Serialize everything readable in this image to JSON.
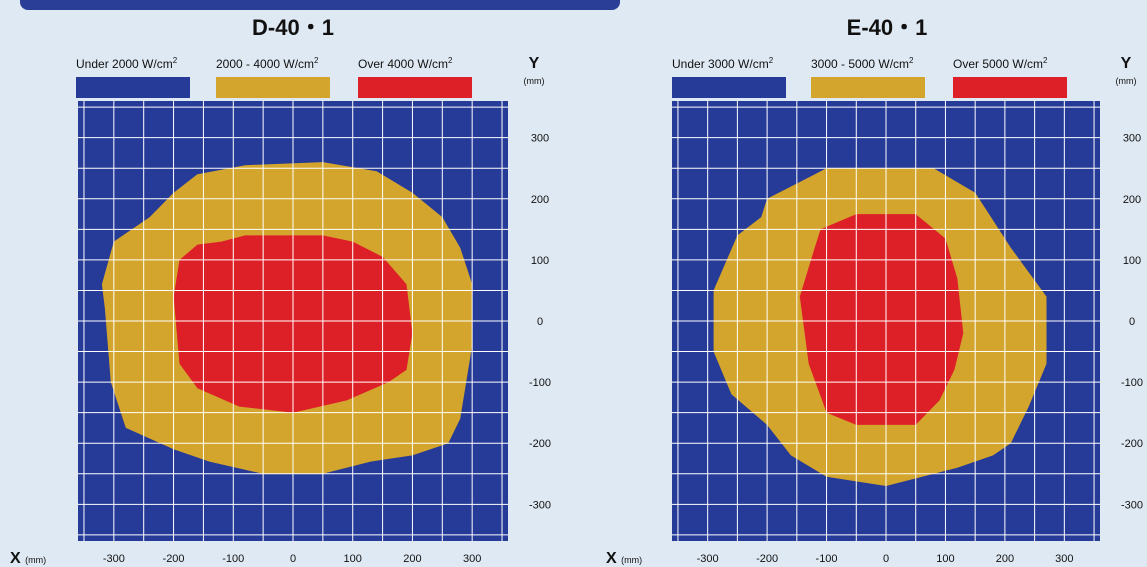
{
  "colors": {
    "background": "#dfe9f3",
    "low": "#263a97",
    "mid": "#d3a52c",
    "high": "#dd2028",
    "grid": "#ffffff",
    "text": "#111111"
  },
  "chart_data": [
    {
      "type": "heatmap",
      "title": "D-40・1",
      "legend": [
        {
          "label": "Under 2000",
          "unit": "W/cm",
          "sup": "2",
          "color_key": "low"
        },
        {
          "label": "2000 - 4000",
          "unit": "W/cm",
          "sup": "2",
          "color_key": "mid"
        },
        {
          "label": "Over 4000",
          "unit": "W/cm",
          "sup": "2",
          "color_key": "high"
        }
      ],
      "xlabel": "X",
      "xunit": "(mm)",
      "ylabel": "Y",
      "yunit": "(mm)",
      "xlim": [
        -360,
        360
      ],
      "ylim": [
        -360,
        360
      ],
      "xticks": [
        -300,
        -200,
        -100,
        0,
        100,
        200,
        300
      ],
      "yticks": [
        300,
        200,
        100,
        0,
        -100,
        -200,
        -300
      ],
      "grid_step": 50,
      "grid": true,
      "regions": [
        {
          "level": "mid",
          "polygon": [
            [
              -160,
              240
            ],
            [
              -80,
              255
            ],
            [
              50,
              260
            ],
            [
              140,
              245
            ],
            [
              200,
              210
            ],
            [
              250,
              170
            ],
            [
              280,
              120
            ],
            [
              300,
              60
            ],
            [
              300,
              -40
            ],
            [
              290,
              -100
            ],
            [
              280,
              -160
            ],
            [
              260,
              -200
            ],
            [
              200,
              -220
            ],
            [
              130,
              -230
            ],
            [
              50,
              -250
            ],
            [
              -50,
              -250
            ],
            [
              -140,
              -230
            ],
            [
              -200,
              -210
            ],
            [
              -280,
              -175
            ],
            [
              -305,
              -100
            ],
            [
              -315,
              20
            ],
            [
              -320,
              60
            ],
            [
              -300,
              130
            ],
            [
              -240,
              170
            ],
            [
              -200,
              210
            ]
          ]
        },
        {
          "level": "high",
          "polygon": [
            [
              -190,
              100
            ],
            [
              -160,
              125
            ],
            [
              -120,
              130
            ],
            [
              -80,
              140
            ],
            [
              50,
              140
            ],
            [
              100,
              130
            ],
            [
              150,
              105
            ],
            [
              190,
              60
            ],
            [
              200,
              -20
            ],
            [
              190,
              -80
            ],
            [
              160,
              -100
            ],
            [
              90,
              -130
            ],
            [
              0,
              -150
            ],
            [
              -90,
              -140
            ],
            [
              -160,
              -110
            ],
            [
              -190,
              -70
            ],
            [
              -200,
              40
            ]
          ]
        }
      ]
    },
    {
      "type": "heatmap",
      "title": "E-40・1",
      "legend": [
        {
          "label": "Under 3000",
          "unit": "W/cm",
          "sup": "2",
          "color_key": "low"
        },
        {
          "label": "3000 - 5000",
          "unit": "W/cm",
          "sup": "2",
          "color_key": "mid"
        },
        {
          "label": "Over 5000",
          "unit": "W/cm",
          "sup": "2",
          "color_key": "high"
        }
      ],
      "xlabel": "X",
      "xunit": "(mm)",
      "ylabel": "Y",
      "yunit": "(mm)",
      "xlim": [
        -360,
        360
      ],
      "ylim": [
        -360,
        360
      ],
      "xticks": [
        -300,
        -200,
        -100,
        0,
        100,
        200,
        300
      ],
      "yticks": [
        300,
        200,
        100,
        0,
        -100,
        -200,
        -300
      ],
      "grid_step": 50,
      "grid": true,
      "regions": [
        {
          "level": "mid",
          "polygon": [
            [
              -200,
              200
            ],
            [
              -100,
              250
            ],
            [
              80,
              250
            ],
            [
              150,
              210
            ],
            [
              210,
              120
            ],
            [
              270,
              40
            ],
            [
              270,
              -70
            ],
            [
              240,
              -140
            ],
            [
              210,
              -200
            ],
            [
              180,
              -220
            ],
            [
              120,
              -240
            ],
            [
              0,
              -270
            ],
            [
              -100,
              -255
            ],
            [
              -160,
              -220
            ],
            [
              -200,
              -170
            ],
            [
              -260,
              -120
            ],
            [
              -290,
              -50
            ],
            [
              -290,
              50
            ],
            [
              -250,
              140
            ],
            [
              -210,
              170
            ]
          ]
        },
        {
          "level": "high",
          "polygon": [
            [
              -110,
              150
            ],
            [
              -50,
              175
            ],
            [
              50,
              175
            ],
            [
              100,
              135
            ],
            [
              120,
              70
            ],
            [
              130,
              -20
            ],
            [
              115,
              -80
            ],
            [
              90,
              -130
            ],
            [
              50,
              -170
            ],
            [
              -50,
              -170
            ],
            [
              -100,
              -150
            ],
            [
              -130,
              -70
            ],
            [
              -145,
              40
            ],
            [
              -120,
              120
            ]
          ]
        }
      ]
    }
  ]
}
